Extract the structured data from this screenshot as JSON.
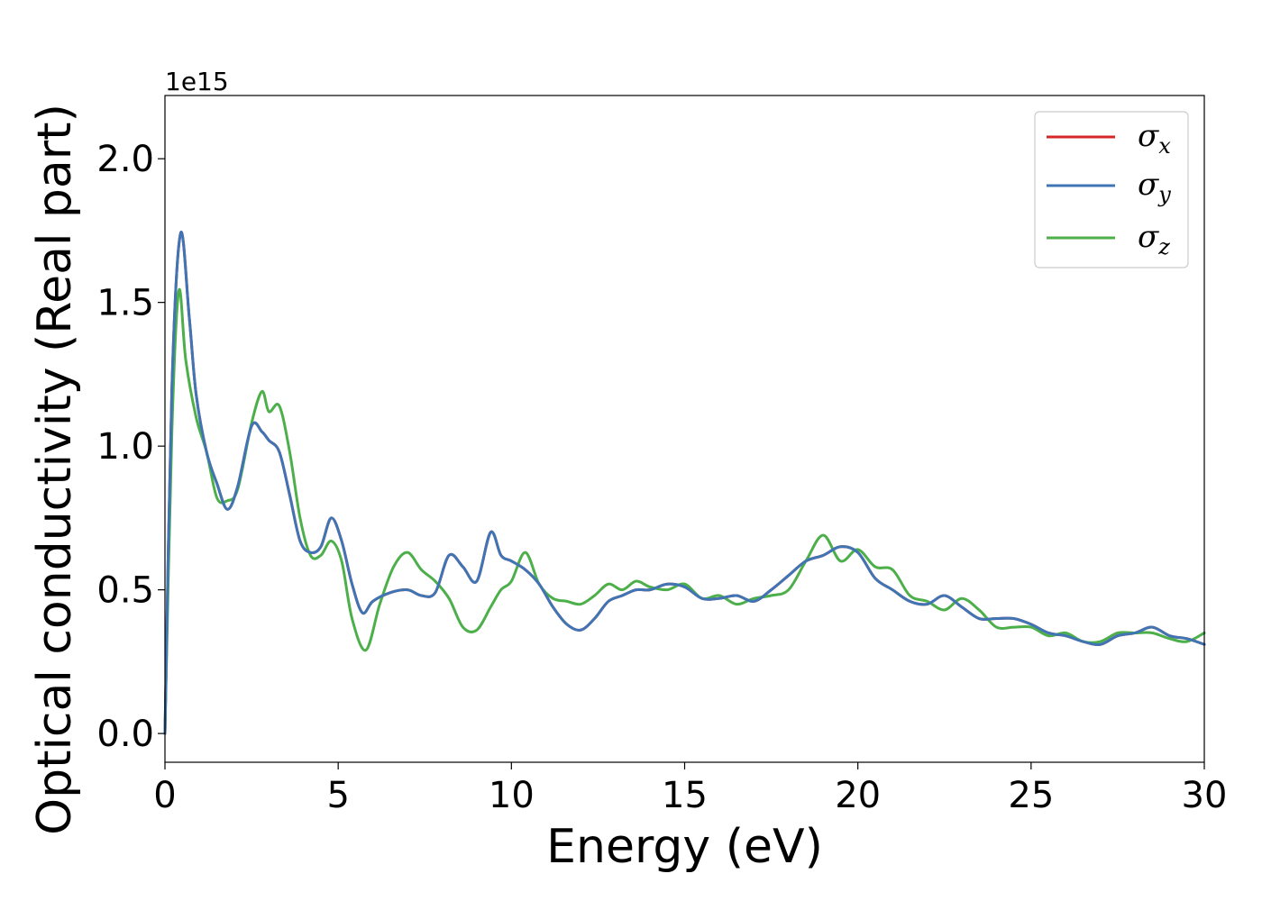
{
  "chart_data": {
    "type": "line",
    "title": "",
    "xlabel": "Energy (eV)",
    "ylabel": "Optical conductivity (Real part)",
    "y_offset_label": "1e15",
    "xlim": [
      0,
      30
    ],
    "ylim": [
      -0.1,
      2.22
    ],
    "x_ticks": [
      0,
      5,
      10,
      15,
      20,
      25,
      30
    ],
    "x_tick_labels": [
      "0",
      "5",
      "10",
      "15",
      "20",
      "25",
      "30"
    ],
    "y_ticks": [
      0.0,
      0.5,
      1.0,
      1.5,
      2.0
    ],
    "y_tick_labels": [
      "0.0",
      "0.5",
      "1.0",
      "1.5",
      "2.0"
    ],
    "grid": false,
    "legend_position": "top-right",
    "series": [
      {
        "name": "σx",
        "legend_symbol": "σ",
        "legend_subscript": "x",
        "color": "#d62728",
        "x": [
          0,
          0.2,
          0.45,
          0.7,
          0.9,
          1.2,
          1.5,
          1.8,
          2.1,
          2.5,
          2.8,
          3.0,
          3.3,
          3.6,
          3.9,
          4.2,
          4.5,
          4.8,
          5.1,
          5.4,
          5.7,
          6.0,
          6.5,
          7.0,
          7.4,
          7.8,
          8.2,
          8.6,
          9.0,
          9.4,
          9.7,
          10.0,
          10.4,
          10.8,
          11.2,
          11.6,
          12.0,
          12.4,
          12.8,
          13.2,
          13.6,
          14.0,
          14.5,
          15.0,
          15.5,
          16.0,
          16.5,
          17.0,
          17.5,
          18.0,
          18.5,
          19.0,
          19.5,
          20.0,
          20.5,
          21.0,
          21.5,
          22.0,
          22.5,
          23.0,
          23.5,
          24.0,
          24.5,
          25.0,
          25.5,
          26.0,
          26.5,
          27.0,
          27.5,
          28.0,
          28.5,
          29.0,
          29.5,
          30.0
        ],
        "values": [
          0,
          1.2,
          1.74,
          1.45,
          1.18,
          0.98,
          0.87,
          0.78,
          0.86,
          1.07,
          1.05,
          1.02,
          0.98,
          0.83,
          0.67,
          0.63,
          0.65,
          0.75,
          0.67,
          0.52,
          0.42,
          0.46,
          0.49,
          0.5,
          0.48,
          0.49,
          0.62,
          0.58,
          0.53,
          0.7,
          0.62,
          0.6,
          0.57,
          0.52,
          0.44,
          0.38,
          0.36,
          0.4,
          0.46,
          0.48,
          0.5,
          0.5,
          0.52,
          0.51,
          0.47,
          0.47,
          0.48,
          0.46,
          0.5,
          0.55,
          0.6,
          0.62,
          0.65,
          0.63,
          0.54,
          0.5,
          0.46,
          0.45,
          0.48,
          0.44,
          0.4,
          0.4,
          0.4,
          0.38,
          0.35,
          0.34,
          0.32,
          0.31,
          0.34,
          0.35,
          0.37,
          0.34,
          0.33,
          0.31
        ]
      },
      {
        "name": "σy",
        "legend_symbol": "σ",
        "legend_subscript": "y",
        "color": "#3f75b4",
        "x": [
          0,
          0.2,
          0.45,
          0.7,
          0.9,
          1.2,
          1.5,
          1.8,
          2.1,
          2.5,
          2.8,
          3.0,
          3.3,
          3.6,
          3.9,
          4.2,
          4.5,
          4.8,
          5.1,
          5.4,
          5.7,
          6.0,
          6.5,
          7.0,
          7.4,
          7.8,
          8.2,
          8.6,
          9.0,
          9.4,
          9.7,
          10.0,
          10.4,
          10.8,
          11.2,
          11.6,
          12.0,
          12.4,
          12.8,
          13.2,
          13.6,
          14.0,
          14.5,
          15.0,
          15.5,
          16.0,
          16.5,
          17.0,
          17.5,
          18.0,
          18.5,
          19.0,
          19.5,
          20.0,
          20.5,
          21.0,
          21.5,
          22.0,
          22.5,
          23.0,
          23.5,
          24.0,
          24.5,
          25.0,
          25.5,
          26.0,
          26.5,
          27.0,
          27.5,
          28.0,
          28.5,
          29.0,
          29.5,
          30.0
        ],
        "values": [
          0,
          1.2,
          1.74,
          1.45,
          1.18,
          0.98,
          0.87,
          0.78,
          0.86,
          1.07,
          1.05,
          1.02,
          0.98,
          0.83,
          0.67,
          0.63,
          0.65,
          0.75,
          0.67,
          0.52,
          0.42,
          0.46,
          0.49,
          0.5,
          0.48,
          0.49,
          0.62,
          0.58,
          0.53,
          0.7,
          0.62,
          0.6,
          0.57,
          0.52,
          0.44,
          0.38,
          0.36,
          0.4,
          0.46,
          0.48,
          0.5,
          0.5,
          0.52,
          0.51,
          0.47,
          0.47,
          0.48,
          0.46,
          0.5,
          0.55,
          0.6,
          0.62,
          0.65,
          0.63,
          0.54,
          0.5,
          0.46,
          0.45,
          0.48,
          0.44,
          0.4,
          0.4,
          0.4,
          0.38,
          0.35,
          0.34,
          0.32,
          0.31,
          0.34,
          0.35,
          0.37,
          0.34,
          0.33,
          0.31
        ]
      },
      {
        "name": "σz",
        "legend_symbol": "σ",
        "legend_subscript": "z",
        "color": "#4daf4a",
        "x": [
          0,
          0.2,
          0.4,
          0.6,
          0.9,
          1.2,
          1.5,
          1.8,
          2.1,
          2.5,
          2.8,
          3.0,
          3.3,
          3.6,
          3.9,
          4.2,
          4.5,
          4.8,
          5.1,
          5.4,
          5.8,
          6.2,
          6.6,
          7.0,
          7.4,
          7.8,
          8.2,
          8.6,
          9.0,
          9.4,
          9.7,
          10.0,
          10.4,
          10.8,
          11.2,
          11.6,
          12.0,
          12.4,
          12.8,
          13.2,
          13.6,
          14.0,
          14.5,
          15.0,
          15.5,
          16.0,
          16.5,
          17.0,
          17.5,
          18.0,
          18.5,
          19.0,
          19.5,
          20.0,
          20.5,
          21.0,
          21.5,
          22.0,
          22.5,
          23.0,
          23.5,
          24.0,
          24.5,
          25.0,
          25.5,
          26.0,
          26.5,
          27.0,
          27.5,
          28.0,
          28.5,
          29.0,
          29.5,
          30.0
        ],
        "values": [
          0,
          1.05,
          1.54,
          1.3,
          1.1,
          0.98,
          0.82,
          0.81,
          0.85,
          1.08,
          1.19,
          1.12,
          1.14,
          0.98,
          0.75,
          0.62,
          0.62,
          0.67,
          0.6,
          0.4,
          0.29,
          0.45,
          0.58,
          0.63,
          0.57,
          0.53,
          0.47,
          0.37,
          0.36,
          0.44,
          0.5,
          0.53,
          0.63,
          0.52,
          0.47,
          0.46,
          0.45,
          0.48,
          0.52,
          0.5,
          0.53,
          0.51,
          0.5,
          0.52,
          0.47,
          0.48,
          0.45,
          0.47,
          0.48,
          0.5,
          0.6,
          0.69,
          0.6,
          0.64,
          0.58,
          0.57,
          0.48,
          0.46,
          0.43,
          0.47,
          0.43,
          0.37,
          0.37,
          0.37,
          0.34,
          0.35,
          0.32,
          0.32,
          0.35,
          0.35,
          0.35,
          0.33,
          0.32,
          0.35
        ]
      }
    ]
  }
}
